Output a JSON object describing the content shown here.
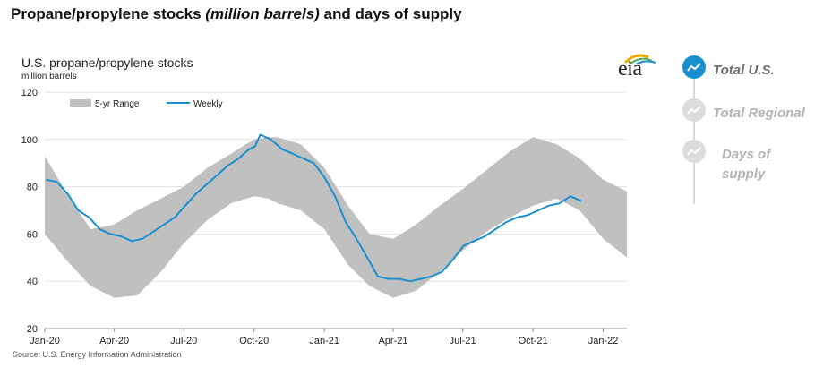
{
  "page_title_main": "Propane/propylene stocks ",
  "page_title_italic": "(million barrels)",
  "page_title_tail": " and days of supply",
  "source": "Source: U.S. Energy Information Administration",
  "logo_text": "eia",
  "nav": [
    {
      "label": "Total U.S.",
      "active": true
    },
    {
      "label": "Total Regional",
      "active": false
    },
    {
      "label": "Days of supply",
      "active": false
    }
  ],
  "colors": {
    "range": "#c0c0c0",
    "weekly": "#1a8fd0",
    "nav_active": "#1a8fd0"
  },
  "chart_data": {
    "type": "area",
    "title": "U.S. propane/propylene stocks",
    "units": "million barrels",
    "ylim": [
      20,
      120
    ],
    "yticks": [
      20,
      40,
      60,
      80,
      100,
      120
    ],
    "x_ticks": [
      "Jan-20",
      "Apr-20",
      "Jul-20",
      "Oct-20",
      "Jan-21",
      "Apr-21",
      "Jul-21",
      "Oct-21",
      "Jan-22"
    ],
    "x_range": [
      "2020-01-01",
      "2022-02-01"
    ],
    "grid": true,
    "legend": "top-left",
    "series": [
      {
        "name": "5-yr Range",
        "kind": "range",
        "x": [
          "2020-01-01",
          "2020-02-01",
          "2020-03-01",
          "2020-04-01",
          "2020-05-01",
          "2020-06-01",
          "2020-07-01",
          "2020-08-01",
          "2020-09-01",
          "2020-10-01",
          "2020-10-20",
          "2020-11-01",
          "2020-12-01",
          "2021-01-01",
          "2021-02-01",
          "2021-03-01",
          "2021-04-01",
          "2021-05-01",
          "2021-06-01",
          "2021-07-01",
          "2021-08-01",
          "2021-09-01",
          "2021-10-01",
          "2021-11-01",
          "2021-12-01",
          "2022-01-01",
          "2022-02-01"
        ],
        "low": [
          60,
          48,
          38,
          33,
          34,
          44,
          56,
          66,
          73,
          76,
          75,
          73,
          70,
          62,
          47,
          38,
          33,
          36,
          44,
          53,
          61,
          67,
          72,
          75,
          70,
          58,
          50
        ],
        "high": [
          93,
          76,
          62,
          64,
          70,
          75,
          80,
          88,
          94,
          100,
          101,
          101,
          98,
          88,
          72,
          60,
          58,
          64,
          72,
          79,
          87,
          95,
          101,
          98,
          92,
          83,
          78
        ]
      },
      {
        "name": "Weekly",
        "kind": "line",
        "x": [
          "2020-01-03",
          "2020-01-17",
          "2020-01-31",
          "2020-02-14",
          "2020-02-28",
          "2020-03-13",
          "2020-03-27",
          "2020-04-10",
          "2020-04-24",
          "2020-05-08",
          "2020-05-22",
          "2020-06-05",
          "2020-06-19",
          "2020-07-03",
          "2020-07-17",
          "2020-07-31",
          "2020-08-14",
          "2020-08-28",
          "2020-09-11",
          "2020-09-25",
          "2020-10-02",
          "2020-10-09",
          "2020-10-23",
          "2020-11-06",
          "2020-11-20",
          "2020-12-04",
          "2020-12-18",
          "2021-01-01",
          "2021-01-15",
          "2021-01-29",
          "2021-02-12",
          "2021-02-26",
          "2021-03-12",
          "2021-03-26",
          "2021-04-09",
          "2021-04-23",
          "2021-05-07",
          "2021-05-21",
          "2021-06-04",
          "2021-06-18",
          "2021-07-02",
          "2021-07-16",
          "2021-07-30",
          "2021-08-13",
          "2021-08-27",
          "2021-09-10",
          "2021-09-24",
          "2021-10-08",
          "2021-10-22",
          "2021-11-05",
          "2021-11-19",
          "2021-12-03"
        ],
        "values": [
          83,
          82,
          77,
          70,
          67,
          62,
          60,
          59,
          57,
          58,
          61,
          64,
          67,
          72,
          77,
          81,
          85,
          89,
          92,
          96,
          97,
          102,
          100,
          96,
          94,
          92,
          90,
          84,
          76,
          65,
          58,
          50,
          42,
          41,
          41,
          40,
          41,
          42,
          44,
          49,
          55,
          57,
          59,
          62,
          65,
          67,
          68,
          70,
          72,
          73,
          76,
          74
        ]
      }
    ]
  }
}
